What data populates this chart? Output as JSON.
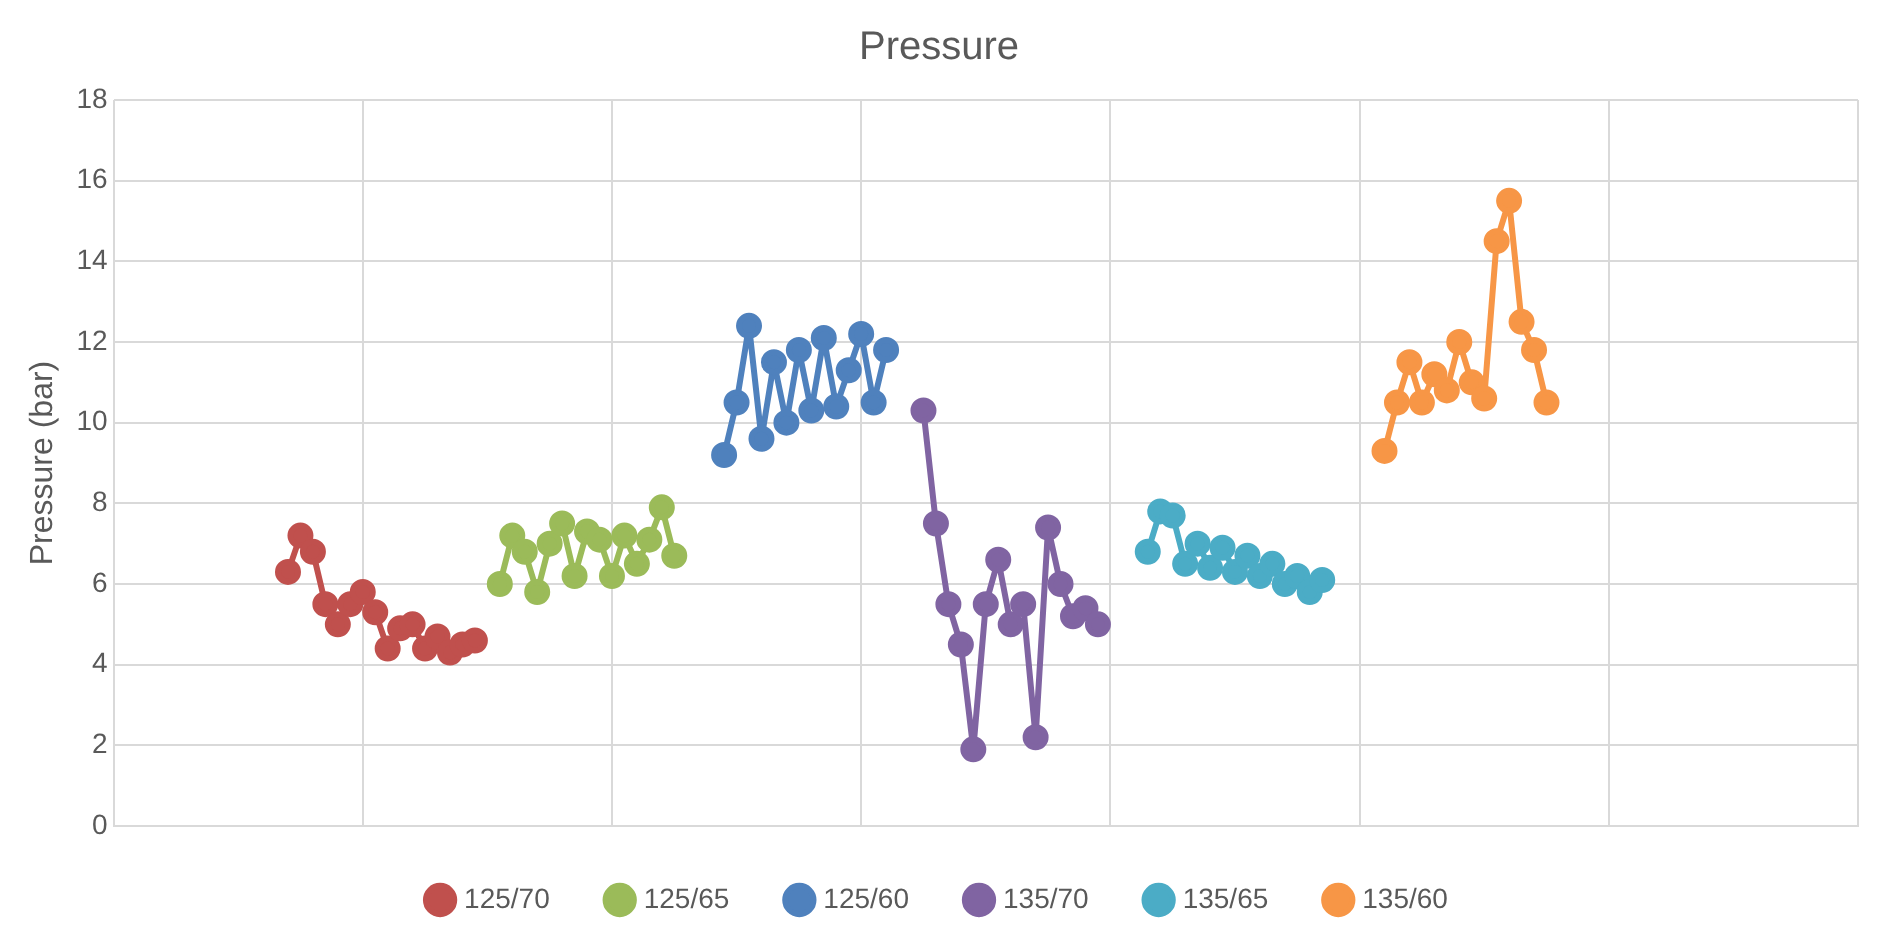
{
  "chart_data": {
    "type": "line",
    "title": "Pressure",
    "ylabel": "Pressure (bar)",
    "ylim": [
      0,
      18
    ],
    "yticks": [
      0,
      2,
      4,
      6,
      8,
      10,
      12,
      14,
      16,
      18
    ],
    "grid": true,
    "legend": "bottom",
    "marker": "circle",
    "tick_labels": "y",
    "categories": [
      null,
      null,
      null,
      null,
      null,
      null,
      null,
      null,
      null,
      null,
      null,
      null,
      null,
      null,
      null,
      null,
      null,
      null,
      null,
      null,
      null,
      null,
      null,
      null,
      null,
      null,
      null,
      null,
      null,
      null,
      null,
      null,
      null,
      null,
      null,
      null,
      null,
      null,
      null,
      null,
      null,
      null,
      null,
      null,
      null,
      null,
      null,
      null,
      null,
      null,
      null,
      null,
      null,
      null,
      null,
      null,
      null,
      null,
      null,
      null,
      null,
      null,
      null,
      null,
      null,
      null,
      null,
      null,
      null,
      null,
      null,
      null,
      null,
      null,
      null,
      null,
      null,
      null,
      null,
      null,
      null,
      null,
      null,
      null,
      null,
      null,
      null,
      null,
      null,
      null,
      null,
      null,
      null,
      null,
      null,
      null,
      null,
      null,
      null,
      null,
      null,
      null,
      null,
      null,
      null,
      null,
      null,
      null,
      null,
      null,
      null,
      null,
      null,
      null,
      null,
      null,
      null,
      null,
      null,
      null,
      null,
      null,
      null,
      null,
      null,
      null,
      null,
      null,
      null,
      null,
      null,
      null,
      null,
      null,
      null,
      null,
      null,
      null,
      null,
      null,
      null
    ],
    "series": [
      {
        "name": "125/70",
        "color": "#c0504d",
        "values": [
          null,
          null,
          null,
          null,
          null,
          null,
          null,
          null,
          null,
          null,
          null,
          null,
          null,
          null,
          6.3,
          7.2,
          6.8,
          5.5,
          5.0,
          5.5,
          5.8,
          5.3,
          4.4,
          4.9,
          5.0,
          4.4,
          4.7,
          4.3,
          4.5,
          4.6,
          null,
          null,
          null,
          null,
          null,
          null,
          null,
          null,
          null,
          null,
          null,
          null,
          null,
          null,
          null,
          null,
          null,
          null,
          null,
          null,
          null,
          null,
          null,
          null,
          null,
          null,
          null,
          null,
          null,
          null,
          null,
          null,
          null,
          null,
          null,
          null,
          null,
          null,
          null,
          null,
          null,
          null,
          null,
          null,
          null,
          null,
          null,
          null,
          null,
          null,
          null,
          null,
          null,
          null,
          null,
          null,
          null,
          null,
          null,
          null,
          null,
          null,
          null,
          null,
          null,
          null,
          null,
          null,
          null,
          null,
          null,
          null,
          null,
          null,
          null,
          null,
          null,
          null,
          null,
          null,
          null,
          null,
          null,
          null,
          null,
          null,
          null,
          null,
          null,
          null,
          null,
          null,
          null,
          null,
          null,
          null,
          null,
          null,
          null,
          null,
          null,
          null,
          null,
          null,
          null,
          null,
          null,
          null,
          null,
          null,
          null
        ]
      },
      {
        "name": "125/65",
        "color": "#9bbb59",
        "values": [
          null,
          null,
          null,
          null,
          null,
          null,
          null,
          null,
          null,
          null,
          null,
          null,
          null,
          null,
          null,
          null,
          null,
          null,
          null,
          null,
          null,
          null,
          null,
          null,
          null,
          null,
          null,
          null,
          null,
          null,
          null,
          6.0,
          7.2,
          6.8,
          5.8,
          7.0,
          7.5,
          6.2,
          7.3,
          7.1,
          6.2,
          7.2,
          6.5,
          7.1,
          7.9,
          6.7,
          null,
          null,
          null,
          null,
          null,
          null,
          null,
          null,
          null,
          null,
          null,
          null,
          null,
          null,
          null,
          null,
          null,
          null,
          null,
          null,
          null,
          null,
          null,
          null,
          null,
          null,
          null,
          null,
          null,
          null,
          null,
          null,
          null,
          null,
          null,
          null,
          null,
          null,
          null,
          null,
          null,
          null,
          null,
          null,
          null,
          null,
          null,
          null,
          null,
          null,
          null,
          null,
          null,
          null,
          null,
          null,
          null,
          null,
          null,
          null,
          null,
          null,
          null,
          null,
          null,
          null,
          null,
          null,
          null,
          null,
          null,
          null,
          null,
          null,
          null,
          null,
          null,
          null,
          null,
          null,
          null,
          null,
          null,
          null,
          null,
          null,
          null,
          null,
          null,
          null,
          null,
          null,
          null,
          null,
          null
        ]
      },
      {
        "name": "125/60",
        "color": "#4f81bd",
        "values": [
          null,
          null,
          null,
          null,
          null,
          null,
          null,
          null,
          null,
          null,
          null,
          null,
          null,
          null,
          null,
          null,
          null,
          null,
          null,
          null,
          null,
          null,
          null,
          null,
          null,
          null,
          null,
          null,
          null,
          null,
          null,
          null,
          null,
          null,
          null,
          null,
          null,
          null,
          null,
          null,
          null,
          null,
          null,
          null,
          null,
          null,
          null,
          null,
          null,
          9.2,
          10.5,
          12.4,
          9.6,
          11.5,
          10.0,
          11.8,
          10.3,
          12.1,
          10.4,
          11.3,
          12.2,
          10.5,
          11.8,
          null,
          null,
          null,
          null,
          null,
          null,
          null,
          null,
          null,
          null,
          null,
          null,
          null,
          null,
          null,
          null,
          null,
          null,
          null,
          null,
          null,
          null,
          null,
          null,
          null,
          null,
          null,
          null,
          null,
          null,
          null,
          null,
          null,
          null,
          null,
          null,
          null,
          null,
          null,
          null,
          null,
          null,
          null,
          null,
          null,
          null,
          null,
          null,
          null,
          null,
          null,
          null,
          null,
          null,
          null,
          null,
          null,
          null,
          null,
          null,
          null,
          null,
          null,
          null,
          null,
          null,
          null,
          null,
          null,
          null,
          null,
          null,
          null,
          null,
          null,
          null,
          null,
          null
        ]
      },
      {
        "name": "135/70",
        "color": "#8064a2",
        "values": [
          null,
          null,
          null,
          null,
          null,
          null,
          null,
          null,
          null,
          null,
          null,
          null,
          null,
          null,
          null,
          null,
          null,
          null,
          null,
          null,
          null,
          null,
          null,
          null,
          null,
          null,
          null,
          null,
          null,
          null,
          null,
          null,
          null,
          null,
          null,
          null,
          null,
          null,
          null,
          null,
          null,
          null,
          null,
          null,
          null,
          null,
          null,
          null,
          null,
          null,
          null,
          null,
          null,
          null,
          null,
          null,
          null,
          null,
          null,
          null,
          null,
          null,
          null,
          null,
          null,
          10.3,
          7.5,
          5.5,
          4.5,
          1.9,
          5.5,
          6.6,
          5.0,
          5.5,
          2.2,
          7.4,
          6.0,
          5.2,
          5.4,
          5.0,
          null,
          null,
          null,
          null,
          null,
          null,
          null,
          null,
          null,
          null,
          null,
          null,
          null,
          null,
          null,
          null,
          null,
          null,
          null,
          null,
          null,
          null,
          null,
          null,
          null,
          null,
          null,
          null,
          null,
          null,
          null,
          null,
          null,
          null,
          null,
          null,
          null,
          null,
          null,
          null,
          null,
          null,
          null,
          null,
          null,
          null,
          null,
          null,
          null,
          null,
          null,
          null,
          null,
          null,
          null,
          null,
          null,
          null,
          null,
          null,
          null
        ]
      },
      {
        "name": "135/65",
        "color": "#4bacc6",
        "values": [
          null,
          null,
          null,
          null,
          null,
          null,
          null,
          null,
          null,
          null,
          null,
          null,
          null,
          null,
          null,
          null,
          null,
          null,
          null,
          null,
          null,
          null,
          null,
          null,
          null,
          null,
          null,
          null,
          null,
          null,
          null,
          null,
          null,
          null,
          null,
          null,
          null,
          null,
          null,
          null,
          null,
          null,
          null,
          null,
          null,
          null,
          null,
          null,
          null,
          null,
          null,
          null,
          null,
          null,
          null,
          null,
          null,
          null,
          null,
          null,
          null,
          null,
          null,
          null,
          null,
          null,
          null,
          null,
          null,
          null,
          null,
          null,
          null,
          null,
          null,
          null,
          null,
          null,
          null,
          null,
          null,
          null,
          null,
          6.8,
          7.8,
          7.7,
          6.5,
          7.0,
          6.4,
          6.9,
          6.3,
          6.7,
          6.2,
          6.5,
          6.0,
          6.2,
          5.8,
          6.1,
          null,
          null,
          null,
          null,
          null,
          null,
          null,
          null,
          null,
          null,
          null,
          null,
          null,
          null,
          null,
          null,
          null,
          null,
          null,
          null,
          null,
          null,
          null,
          null,
          null,
          null,
          null,
          null,
          null,
          null,
          null,
          null,
          null,
          null,
          null,
          null,
          null,
          null,
          null,
          null,
          null,
          null,
          null
        ]
      },
      {
        "name": "135/60",
        "color": "#f79646",
        "values": [
          null,
          null,
          null,
          null,
          null,
          null,
          null,
          null,
          null,
          null,
          null,
          null,
          null,
          null,
          null,
          null,
          null,
          null,
          null,
          null,
          null,
          null,
          null,
          null,
          null,
          null,
          null,
          null,
          null,
          null,
          null,
          null,
          null,
          null,
          null,
          null,
          null,
          null,
          null,
          null,
          null,
          null,
          null,
          null,
          null,
          null,
          null,
          null,
          null,
          null,
          null,
          null,
          null,
          null,
          null,
          null,
          null,
          null,
          null,
          null,
          null,
          null,
          null,
          null,
          null,
          null,
          null,
          null,
          null,
          null,
          null,
          null,
          null,
          null,
          null,
          null,
          null,
          null,
          null,
          null,
          null,
          null,
          null,
          null,
          null,
          null,
          null,
          null,
          null,
          null,
          null,
          null,
          null,
          null,
          null,
          null,
          null,
          null,
          null,
          null,
          null,
          null,
          9.3,
          10.5,
          11.5,
          10.5,
          11.2,
          10.8,
          12.0,
          11.0,
          10.6,
          14.5,
          15.5,
          12.5,
          11.8,
          10.5,
          null,
          null,
          null,
          null,
          null,
          null,
          null,
          null,
          null,
          null,
          null,
          null,
          null,
          null,
          null,
          null,
          null,
          null,
          null,
          null,
          null,
          null,
          null,
          null,
          null
        ]
      }
    ]
  }
}
